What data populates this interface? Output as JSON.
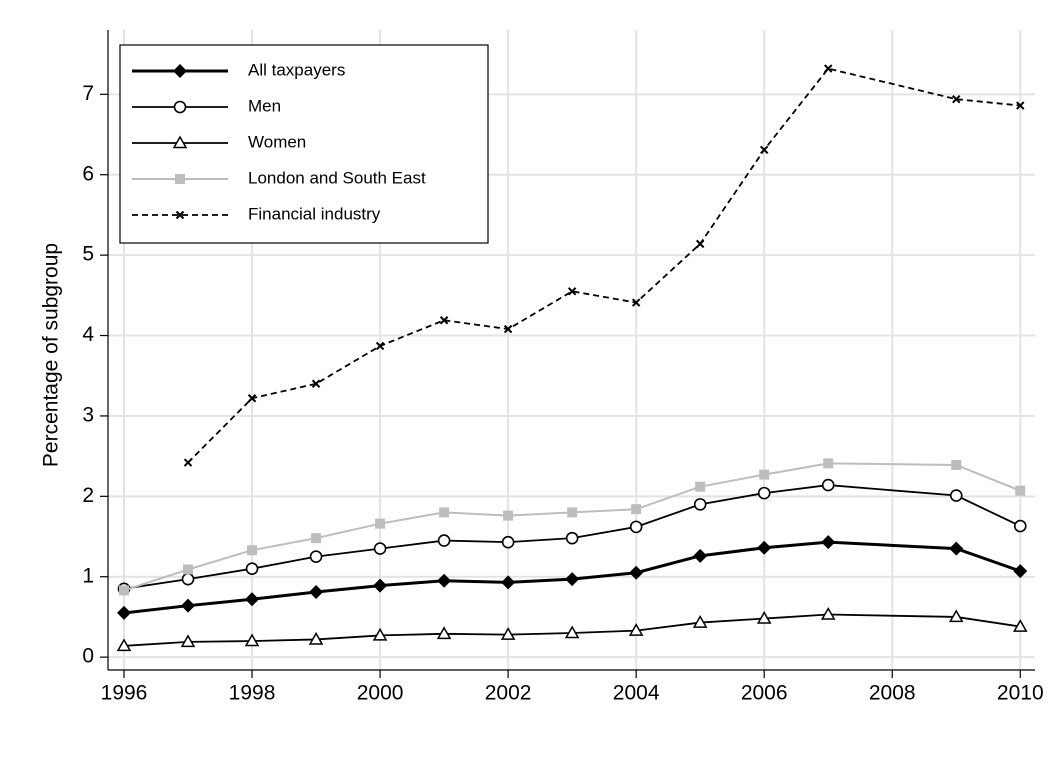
{
  "chart_data": {
    "type": "line",
    "y_label": "Percentage of subgroup",
    "x": [
      1996,
      1997,
      1998,
      1999,
      2000,
      2001,
      2002,
      2003,
      2004,
      2005,
      2006,
      2007,
      2009,
      2010
    ],
    "xlim": [
      1995.75,
      2010.23
    ],
    "xticks": [
      1996,
      1998,
      2000,
      2002,
      2004,
      2006,
      2008,
      2010
    ],
    "ylim": [
      -0.16,
      7.8
    ],
    "yticks": [
      0,
      1,
      2,
      3,
      4,
      5,
      6,
      7
    ],
    "grid": true,
    "legend_position": "top-left",
    "series": [
      {
        "name": "All taxpayers",
        "color": "#000000",
        "marker": "diamond",
        "line_width": 3,
        "dashed": false,
        "values": [
          0.55,
          0.64,
          0.72,
          0.81,
          0.89,
          0.95,
          0.93,
          0.97,
          1.05,
          1.26,
          1.36,
          1.43,
          1.35,
          1.07
        ]
      },
      {
        "name": "Men",
        "color": "#000000",
        "marker": "circle",
        "line_width": 1.8,
        "dashed": false,
        "values": [
          0.85,
          0.97,
          1.1,
          1.25,
          1.35,
          1.45,
          1.43,
          1.48,
          1.62,
          1.9,
          2.04,
          2.14,
          2.01,
          1.63
        ]
      },
      {
        "name": "Women",
        "color": "#000000",
        "marker": "triangle",
        "line_width": 1.8,
        "dashed": false,
        "values": [
          0.14,
          0.19,
          0.2,
          0.22,
          0.27,
          0.29,
          0.28,
          0.3,
          0.33,
          0.43,
          0.48,
          0.53,
          0.5,
          0.38
        ]
      },
      {
        "name": "London and South East",
        "color": "#bdbdbd",
        "marker": "square",
        "line_width": 2,
        "dashed": false,
        "values": [
          0.83,
          1.09,
          1.33,
          1.48,
          1.66,
          1.8,
          1.76,
          1.8,
          1.84,
          2.12,
          2.27,
          2.41,
          2.39,
          2.07
        ]
      },
      {
        "name": "Financial industry",
        "color": "#000000",
        "marker": "x",
        "line_width": 1.8,
        "dashed": true,
        "values": [
          null,
          2.42,
          3.22,
          3.4,
          3.87,
          4.19,
          4.08,
          4.55,
          4.41,
          5.14,
          6.31,
          7.32,
          6.94,
          6.86
        ]
      }
    ]
  }
}
